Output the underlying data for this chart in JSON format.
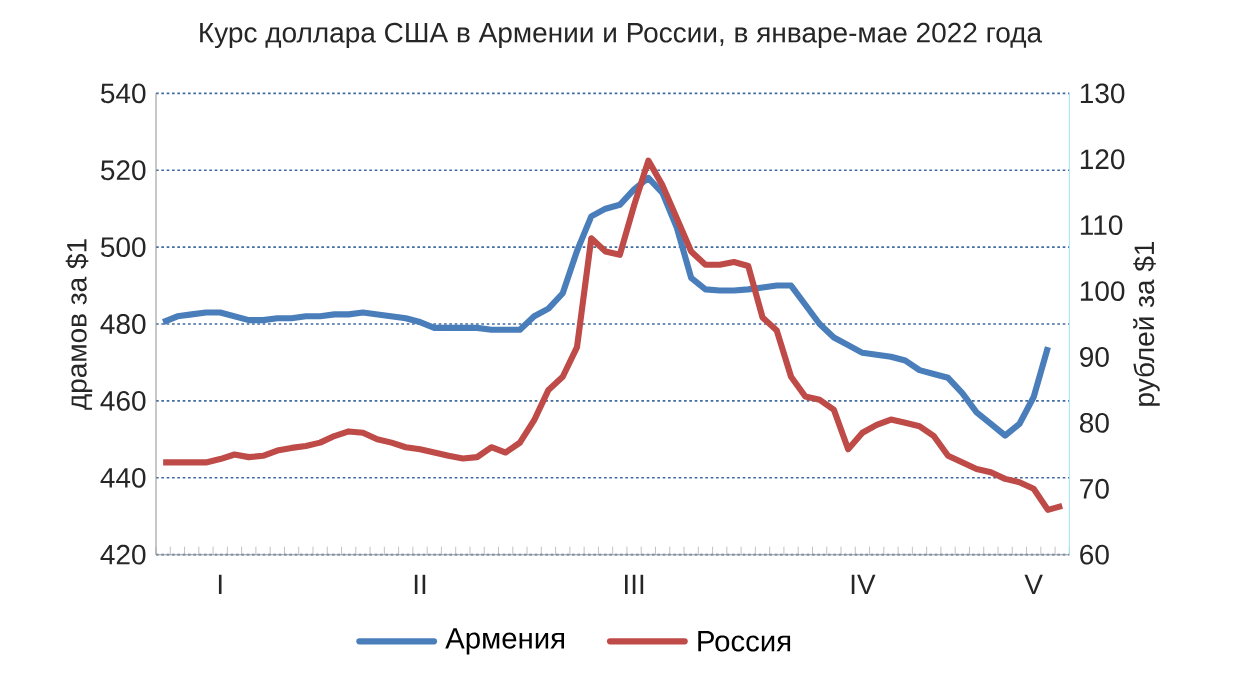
{
  "chart_data": {
    "type": "line",
    "title": "Курс доллара США в Армении и России, в январе-мае 2022 года",
    "ylabel": "драмов за $1",
    "y2label": "рублей за $1",
    "categories": [
      null,
      null,
      null,
      null,
      "I",
      null,
      null,
      null,
      null,
      null,
      null,
      null,
      null,
      null,
      null,
      null,
      null,
      null,
      "II",
      null,
      null,
      null,
      null,
      null,
      null,
      null,
      null,
      null,
      null,
      null,
      null,
      null,
      null,
      "III",
      null,
      null,
      null,
      null,
      null,
      null,
      null,
      null,
      null,
      null,
      null,
      null,
      null,
      null,
      null,
      "IV",
      null,
      null,
      null,
      null,
      null,
      null,
      null,
      null,
      null,
      null,
      null,
      "V",
      null,
      null
    ],
    "series": [
      {
        "name": "Армения",
        "color": "#4a7ebb",
        "values": [
          480.5,
          482,
          482.5,
          483,
          483,
          482,
          481,
          481,
          481.5,
          481.5,
          482,
          482,
          482.5,
          482.5,
          483,
          482.5,
          482,
          481.5,
          480.5,
          479,
          479,
          479,
          479,
          478.5,
          478.5,
          478.5,
          482,
          484,
          488,
          499,
          508,
          510,
          511,
          515,
          518,
          514,
          505,
          492,
          489,
          488.7,
          488.7,
          489,
          489.5,
          490,
          490,
          485,
          480,
          476.5,
          474.5,
          472.5,
          472,
          471.5,
          470.5,
          468,
          467,
          466,
          462,
          457,
          454,
          451,
          454,
          461,
          474,
          null
        ]
      },
      {
        "name": "Россия",
        "color": "#be4b48",
        "axis": "y2",
        "values": [
          74,
          74,
          74,
          74,
          74.5,
          75.2,
          74.8,
          75,
          75.8,
          76.2,
          76.5,
          77,
          78,
          78.7,
          78.5,
          77.5,
          77,
          76.3,
          76,
          75.5,
          75,
          74.6,
          74.8,
          76.3,
          75.5,
          77,
          80.4,
          85,
          87,
          91.5,
          108,
          106,
          105.5,
          113,
          119.8,
          116,
          111,
          106,
          104,
          104,
          104.4,
          103.8,
          96,
          94,
          87,
          84,
          83.5,
          82,
          76,
          78.5,
          79.7,
          80.5,
          80,
          79.5,
          78,
          75,
          74,
          73,
          72.5,
          71.5,
          71,
          70,
          66.8,
          67.4
        ]
      }
    ],
    "ylim": [
      420,
      540
    ],
    "yticks": [
      420,
      440,
      460,
      480,
      500,
      520,
      540
    ],
    "y2lim": [
      60,
      130
    ],
    "y2ticks": [
      60,
      70,
      80,
      90,
      100,
      110,
      120,
      130
    ],
    "grid": "y",
    "legend": "bottom",
    "line_style": "solid",
    "marker": "none"
  }
}
